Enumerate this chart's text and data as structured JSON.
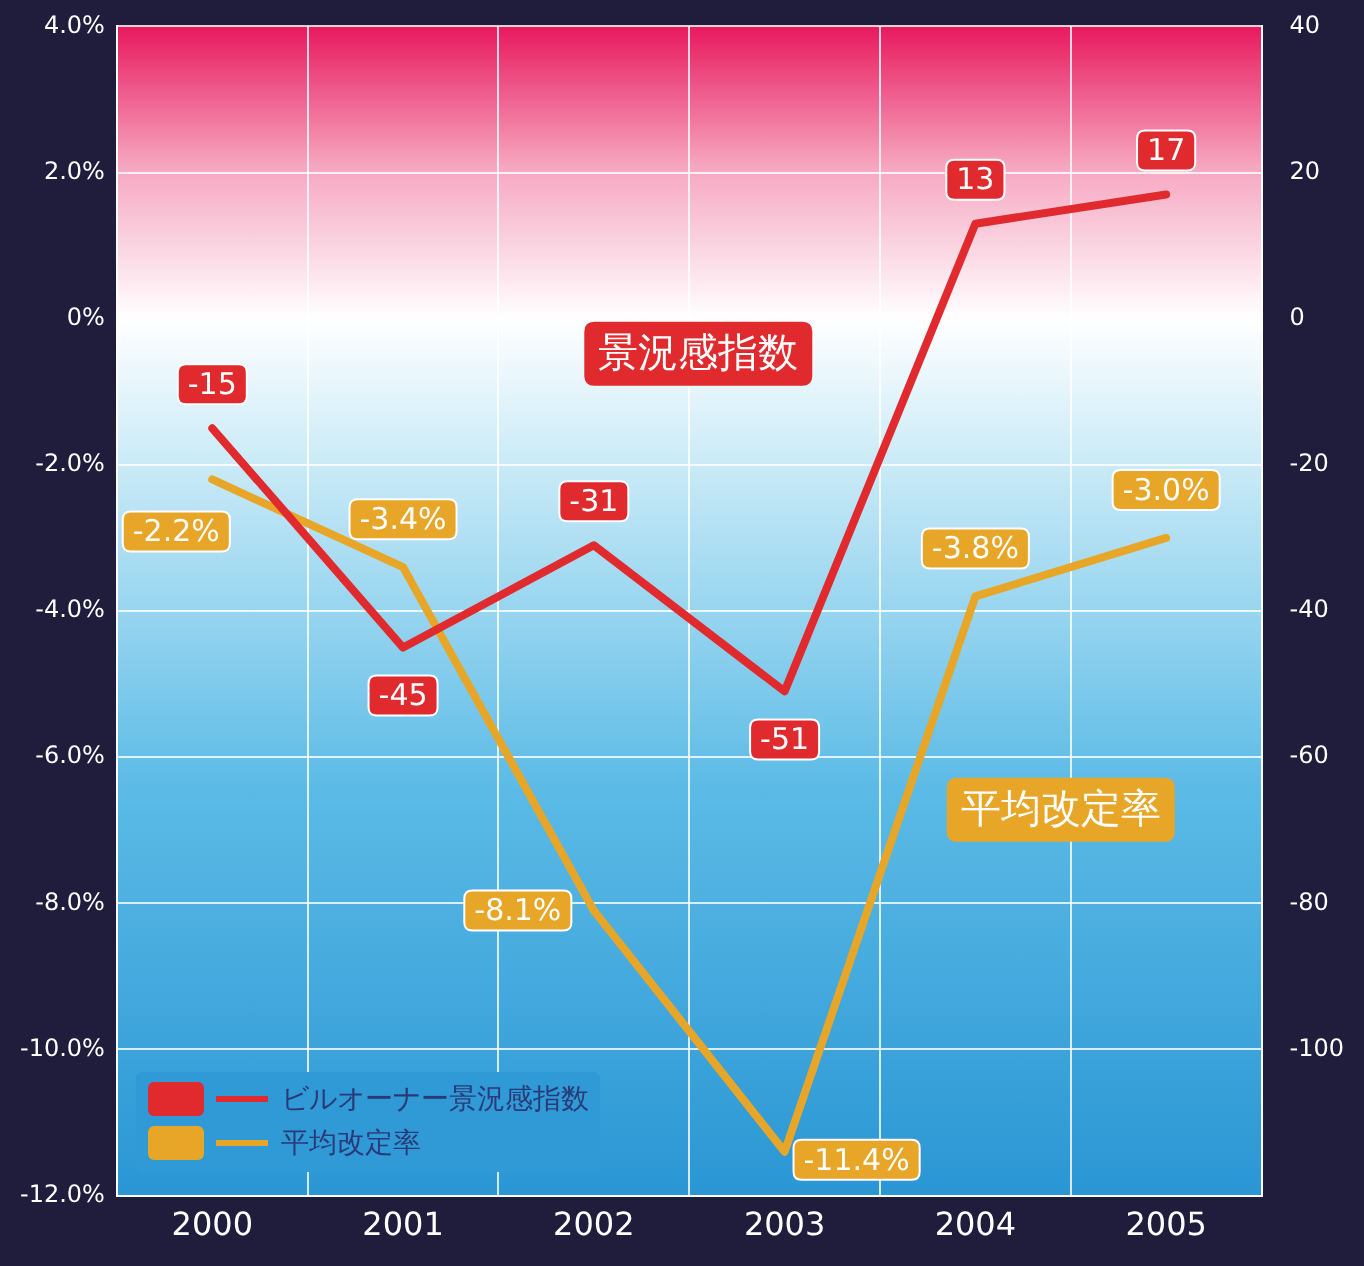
{
  "chart_data": {
    "type": "line",
    "categories": [
      "2000",
      "2001",
      "2002",
      "2003",
      "2004",
      "2005"
    ],
    "series": [
      {
        "name": "ビルオーナー景況感指数",
        "color": "#e02a2e",
        "axis": "y2",
        "values": [
          -15,
          -45,
          -31,
          -51,
          13,
          17
        ],
        "value_labels": [
          "-15",
          "-45",
          "-31",
          "-51",
          "13",
          "17"
        ]
      },
      {
        "name": "平均改定率",
        "color": "#e8a628",
        "values": [
          -2.2,
          -3.4,
          -8.1,
          -11.4,
          -3.8,
          -3.0
        ],
        "value_labels": [
          "-2.2%",
          "-3.4%",
          "-8.1%",
          "-11.4%",
          "-3.8%",
          "-3.0%"
        ]
      }
    ],
    "ylim": [
      -12,
      4
    ],
    "yticks": [
      {
        "value": 4,
        "label": "4.0%"
      },
      {
        "value": 2,
        "label": "2.0%"
      },
      {
        "value": 0,
        "label": "0%"
      },
      {
        "value": -2,
        "label": "-2.0%"
      },
      {
        "value": -4,
        "label": "-4.0%"
      },
      {
        "value": -6,
        "label": "-6.0%"
      },
      {
        "value": -8,
        "label": "-8.0%"
      },
      {
        "value": -10,
        "label": "-10.0%"
      },
      {
        "value": -12,
        "label": "-12.0%"
      }
    ],
    "y2lim": [
      -120,
      40
    ],
    "y2ticks": [
      40,
      20,
      0,
      -20,
      -40,
      -60,
      -80,
      -100
    ],
    "annotations": [
      "景況感指数",
      "平均改定率"
    ],
    "grid": true,
    "legend": "bottom left",
    "marker": "none",
    "line_style": "solid"
  }
}
